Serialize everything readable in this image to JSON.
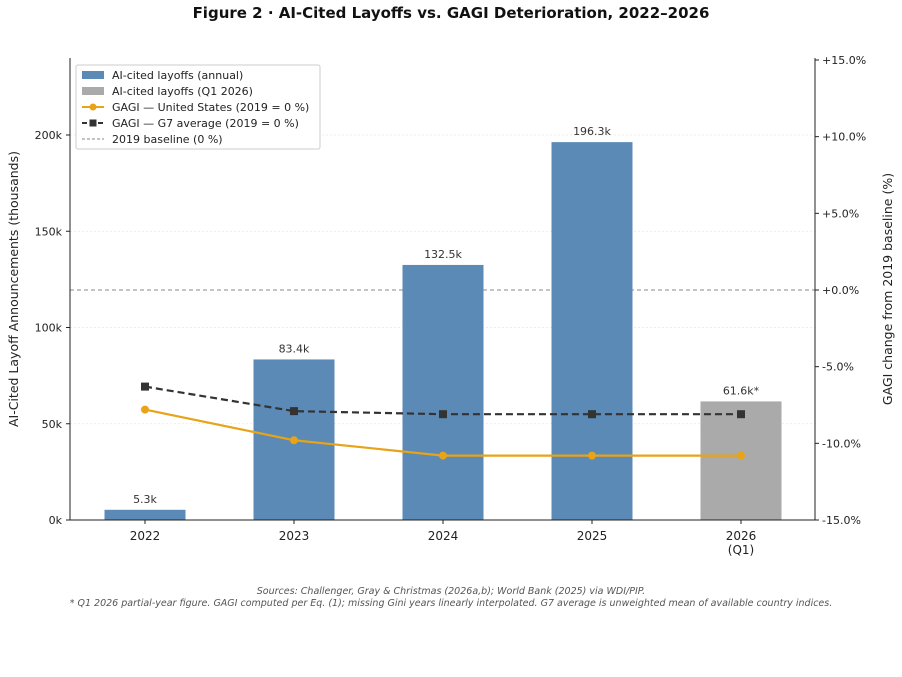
{
  "page": {
    "title": "Figure 2  ·  AI-Cited Layoffs vs. GAGI Deterioration, 2022–2026",
    "footnote_line1": "Sources: Challenger, Gray & Christmas (2026a,b); World Bank (2025) via WDI/PIP.",
    "footnote_line2": "* Q1 2026 partial-year figure.  GAGI computed per Eq. (1); missing Gini years linearly interpolated.  G7 average is unweighted mean of available country indices."
  },
  "chart_data": {
    "type": "bar",
    "categories": [
      "2022",
      "2023",
      "2024",
      "2025",
      "2026\n(Q1)"
    ],
    "y_left": {
      "label": "AI-Cited Layoff Announcements (thousands)",
      "range": [
        0,
        240000
      ],
      "ticks": [
        0,
        50000,
        100000,
        150000,
        200000
      ],
      "tick_labels": [
        "0k",
        "50k",
        "100k",
        "150k",
        "200k"
      ]
    },
    "y_right": {
      "label": "GAGI change from 2019 baseline (%)",
      "range": [
        -15,
        15
      ],
      "ticks": [
        -15,
        -10,
        -5,
        0,
        5,
        10,
        15
      ],
      "tick_labels": [
        "-15.0%",
        "-10.0%",
        "-5.0%",
        "+0.0%",
        "+5.0%",
        "+10.0%",
        "+15.0%"
      ]
    },
    "bars": {
      "values": [
        5300,
        83400,
        132500,
        196300,
        61600
      ],
      "labels": [
        "5.3k",
        "83.4k",
        "132.5k",
        "196.3k",
        "61.6k*"
      ],
      "colors": [
        "#5b8ab6",
        "#5b8ab6",
        "#5b8ab6",
        "#5b8ab6",
        "#aaaaaa"
      ]
    },
    "series": [
      {
        "name": "GAGI — United States (2019 = 0 %)",
        "axis": "right",
        "values": [
          -7.8,
          -9.8,
          -10.8,
          -10.8,
          -10.8
        ],
        "color": "#e8a317",
        "style": "solid",
        "marker": "circle"
      },
      {
        "name": "GAGI — G7 average (2019 = 0 %)",
        "axis": "right",
        "values": [
          -6.3,
          -7.9,
          -8.1,
          -8.1,
          -8.1
        ],
        "color": "#333333",
        "style": "dashed",
        "marker": "square"
      }
    ],
    "baseline": {
      "value": 0,
      "axis": "right",
      "color": "#888888"
    },
    "legend": {
      "position": "top-left",
      "entries": [
        {
          "label": "AI-cited layoffs (annual)",
          "kind": "patch",
          "color": "#5b8ab6"
        },
        {
          "label": "AI-cited layoffs (Q1 2026)",
          "kind": "patch",
          "color": "#aaaaaa"
        },
        {
          "label": "GAGI — United States (2019 = 0 %)",
          "kind": "line-circle",
          "color": "#e8a317"
        },
        {
          "label": "GAGI — G7 average (2019 = 0 %)",
          "kind": "dash-square",
          "color": "#333333"
        },
        {
          "label": "2019 baseline (0 %)",
          "kind": "thin-dash",
          "color": "#888888"
        }
      ]
    },
    "grid": true
  }
}
